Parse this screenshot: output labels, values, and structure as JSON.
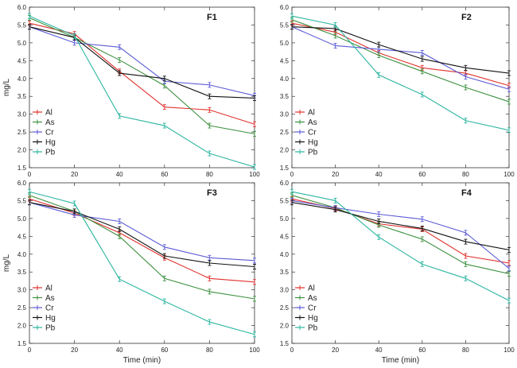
{
  "colors": {
    "Al": "#e0312d",
    "As": "#3d9140",
    "Cr": "#5b5bd6",
    "Hg": "#111111",
    "Pb": "#2bb5a0"
  },
  "chart_data": [
    {
      "type": "line",
      "title": "F1",
      "xlabel": "",
      "ylabel": "mg/L",
      "x": [
        0,
        20,
        40,
        60,
        80,
        100
      ],
      "xlim": [
        0,
        100
      ],
      "ylim": [
        1.5,
        6.0
      ],
      "xticks": [
        "0",
        "20",
        "40",
        "60",
        "80",
        "100"
      ],
      "yticks": [
        "1.5",
        "2.0",
        "2.5",
        "3.0",
        "3.5",
        "4.0",
        "4.5",
        "5.0",
        "5.5",
        "6.0"
      ],
      "legend": "bottom-left",
      "series": [
        {
          "name": "Al",
          "values": [
            5.55,
            5.25,
            4.2,
            3.2,
            3.12,
            2.72
          ]
        },
        {
          "name": "As",
          "values": [
            5.7,
            5.15,
            4.52,
            3.8,
            2.68,
            2.45
          ]
        },
        {
          "name": "Cr",
          "values": [
            5.45,
            5.0,
            4.88,
            3.92,
            3.82,
            3.52
          ]
        },
        {
          "name": "Hg",
          "values": [
            5.45,
            5.15,
            4.15,
            4.0,
            3.5,
            3.45
          ]
        },
        {
          "name": "Pb",
          "values": [
            5.75,
            5.2,
            2.95,
            2.68,
            1.9,
            1.52
          ]
        }
      ]
    },
    {
      "type": "line",
      "title": "F2",
      "xlabel": "",
      "ylabel": "",
      "x": [
        0,
        20,
        40,
        60,
        80,
        100
      ],
      "xlim": [
        0,
        100
      ],
      "ylim": [
        1.5,
        6.0
      ],
      "xticks": [
        "0",
        "20",
        "40",
        "60",
        "80",
        "100"
      ],
      "yticks": [
        "1.5",
        "2.0",
        "2.5",
        "3.0",
        "3.5",
        "4.0",
        "4.5",
        "5.0",
        "5.5",
        "6.0"
      ],
      "legend": "bottom-left",
      "series": [
        {
          "name": "Al",
          "values": [
            5.55,
            5.3,
            4.72,
            4.3,
            4.15,
            3.8
          ]
        },
        {
          "name": "As",
          "values": [
            5.65,
            5.2,
            4.65,
            4.2,
            3.75,
            3.35
          ]
        },
        {
          "name": "Cr",
          "values": [
            5.45,
            4.92,
            4.82,
            4.72,
            4.05,
            3.7
          ]
        },
        {
          "name": "Hg",
          "values": [
            5.45,
            5.4,
            4.95,
            4.55,
            4.3,
            4.15
          ]
        },
        {
          "name": "Pb",
          "values": [
            5.75,
            5.5,
            4.1,
            3.55,
            2.82,
            2.55
          ]
        }
      ]
    },
    {
      "type": "line",
      "title": "F3",
      "xlabel": "Time (min)",
      "ylabel": "mg/L",
      "x": [
        0,
        20,
        40,
        60,
        80,
        100
      ],
      "xlim": [
        0,
        100
      ],
      "ylim": [
        1.5,
        6.0
      ],
      "xticks": [
        "0",
        "20",
        "40",
        "60",
        "80",
        "100"
      ],
      "yticks": [
        "1.5",
        "2.0",
        "2.5",
        "3.0",
        "3.5",
        "4.0",
        "4.5",
        "5.0",
        "5.5",
        "6.0"
      ],
      "legend": "bottom-left",
      "series": [
        {
          "name": "Al",
          "values": [
            5.55,
            5.15,
            4.6,
            3.9,
            3.32,
            3.22
          ]
        },
        {
          "name": "As",
          "values": [
            5.65,
            5.2,
            4.5,
            3.32,
            2.95,
            2.75
          ]
        },
        {
          "name": "Cr",
          "values": [
            5.45,
            5.1,
            4.92,
            4.2,
            3.9,
            3.82
          ]
        },
        {
          "name": "Hg",
          "values": [
            5.45,
            5.2,
            4.7,
            3.95,
            3.75,
            3.65
          ]
        },
        {
          "name": "Pb",
          "values": [
            5.75,
            5.42,
            3.3,
            2.68,
            2.1,
            1.75
          ]
        }
      ]
    },
    {
      "type": "line",
      "title": "F4",
      "xlabel": "Time (min)",
      "ylabel": "",
      "x": [
        0,
        20,
        40,
        60,
        80,
        100
      ],
      "xlim": [
        0,
        100
      ],
      "ylim": [
        1.5,
        6.0
      ],
      "xticks": [
        "0",
        "20",
        "40",
        "60",
        "80",
        "100"
      ],
      "yticks": [
        "1.5",
        "2.0",
        "2.5",
        "3.0",
        "3.5",
        "4.0",
        "4.5",
        "5.0",
        "5.5",
        "6.0"
      ],
      "legend": "bottom-left",
      "series": [
        {
          "name": "Al",
          "values": [
            5.55,
            5.28,
            4.85,
            4.7,
            3.95,
            3.75
          ]
        },
        {
          "name": "As",
          "values": [
            5.65,
            5.3,
            4.82,
            4.42,
            3.72,
            3.45
          ]
        },
        {
          "name": "Cr",
          "values": [
            5.5,
            5.3,
            5.12,
            4.98,
            4.6,
            3.6
          ]
        },
        {
          "name": "Hg",
          "values": [
            5.45,
            5.25,
            4.92,
            4.72,
            4.35,
            4.12
          ]
        },
        {
          "name": "Pb",
          "values": [
            5.75,
            5.5,
            4.48,
            3.72,
            3.32,
            2.7
          ]
        }
      ]
    }
  ]
}
